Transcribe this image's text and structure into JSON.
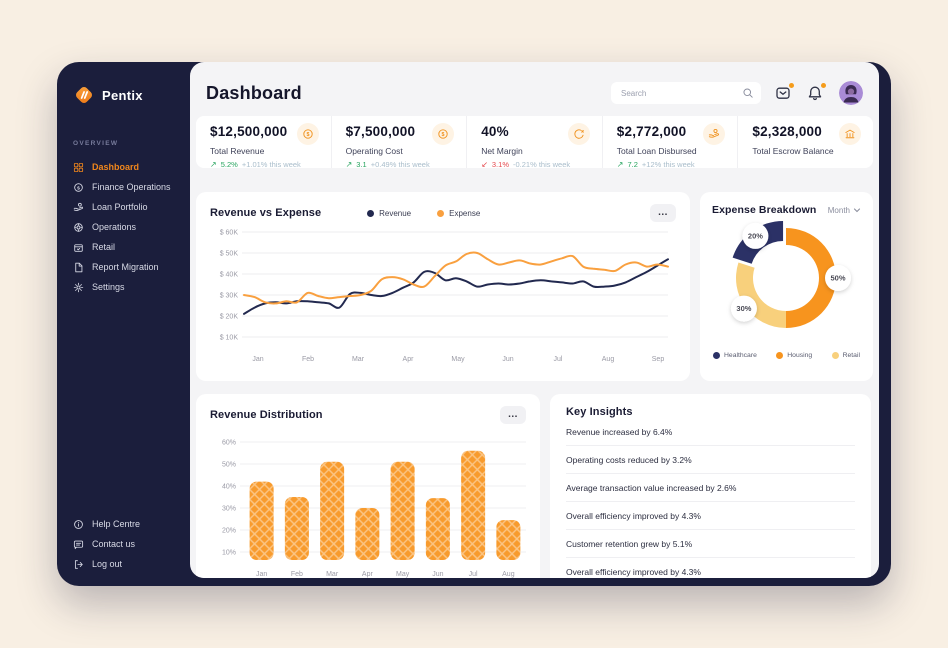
{
  "app": {
    "brand": "Pentix",
    "page_title": "Dashboard"
  },
  "header": {
    "search_placeholder": "Search",
    "icons": [
      "message-icon",
      "bell-icon",
      "user-avatar"
    ]
  },
  "sidebar": {
    "section_label": "OVERVIEW",
    "items": [
      {
        "id": "dashboard",
        "label": "Dashboard",
        "icon": "dashboard-grid-icon",
        "active": true
      },
      {
        "id": "finance-operations",
        "label": "Finance Operations",
        "icon": "dollar-circle-icon",
        "active": false
      },
      {
        "id": "loan-portfolio",
        "label": "Loan Portfolio",
        "icon": "hand-coin-icon",
        "active": false
      },
      {
        "id": "operations",
        "label": "Operations",
        "icon": "operations-icon",
        "active": false
      },
      {
        "id": "retail",
        "label": "Retail",
        "icon": "retail-box-icon",
        "active": false
      },
      {
        "id": "report-migration",
        "label": "Report Migration",
        "icon": "report-doc-icon",
        "active": false
      },
      {
        "id": "settings",
        "label": "Settings",
        "icon": "settings-gear-icon",
        "active": false
      }
    ],
    "footer_items": [
      {
        "id": "help-centre",
        "label": "Help Centre",
        "icon": "help-circle-icon"
      },
      {
        "id": "contact-us",
        "label": "Contact us",
        "icon": "contact-chat-icon"
      },
      {
        "id": "log-out",
        "label": "Log out",
        "icon": "logout-icon"
      }
    ]
  },
  "kpis": [
    {
      "id": "total-revenue",
      "value": "$12,500,000",
      "label": "Total Revenue",
      "icon": "coin-dollar-icon",
      "trend": {
        "dir": "up",
        "arrow": "↗",
        "pct": "5.2%",
        "delta": "+1.01% this week"
      }
    },
    {
      "id": "operating-cost",
      "value": "$7,500,000",
      "label": "Operating Cost",
      "icon": "coin-dollar-icon",
      "trend": {
        "dir": "up",
        "arrow": "↗",
        "pct": "3.1",
        "delta": "+0.49% this week"
      }
    },
    {
      "id": "net-margin",
      "value": "40%",
      "label": "Net Margin",
      "icon": "percent-gauge-icon",
      "trend": {
        "dir": "down",
        "arrow": "↙",
        "pct": "3.1%",
        "delta": "-0.21% this week"
      }
    },
    {
      "id": "total-loan-disbursed",
      "value": "$2,772,000",
      "label": "Total Loan Disbursed",
      "icon": "hand-coin-icon",
      "trend": {
        "dir": "up",
        "arrow": "↗",
        "pct": "7.2",
        "delta": "+12% this week"
      }
    },
    {
      "id": "total-escrow-balance",
      "value": "$2,328,000",
      "label": "Total Escrow Balance",
      "icon": "bank-icon",
      "trend": null
    }
  ],
  "chart_data": [
    {
      "type": "line",
      "title": "Revenue vs Expense",
      "legend_position": "top",
      "x_labels": [
        "Jan",
        "Feb",
        "Mar",
        "Apr",
        "May",
        "Jun",
        "Jul",
        "Aug",
        "Sep"
      ],
      "y_ticks": [
        "$ 60K",
        "$ 50K",
        "$ 40K",
        "$ 30K",
        "$ 20K",
        "$ 10K"
      ],
      "ylim_k": [
        10,
        60
      ],
      "grid": "horizontal",
      "series": [
        {
          "name": "Revenue",
          "color": "#22294F",
          "values_k": [
            21,
            24,
            26,
            26.5,
            26,
            27,
            27,
            26.5,
            26,
            24,
            30.5,
            31,
            30,
            29.5,
            31,
            33.5,
            36,
            41,
            40.5,
            37,
            38,
            36.5,
            34,
            35,
            35.5,
            35,
            35.5,
            36.5,
            37,
            36.5,
            36,
            35.5,
            36.5,
            34,
            34,
            34.5,
            36,
            38.5,
            41,
            44,
            47
          ]
        },
        {
          "name": "Expense",
          "color": "#F9A03F",
          "values_k": [
            30,
            29,
            26.5,
            26,
            27,
            26.5,
            31,
            29.5,
            28.5,
            29,
            29.5,
            30,
            32,
            37.5,
            38.5,
            37.5,
            35,
            34,
            39,
            44,
            46,
            49.5,
            50,
            47,
            44.5,
            45.5,
            46.5,
            45,
            44.5,
            46,
            47.5,
            48.5,
            43.5,
            42.5,
            42,
            41.5,
            44.5,
            45.5,
            43.5,
            44.5,
            43.5
          ]
        }
      ],
      "more_button": "..."
    },
    {
      "type": "pie",
      "title": "Expense Breakdown",
      "period_selector": "Month",
      "slices": [
        {
          "name": "Housing",
          "value": 50,
          "label": "50%",
          "color": "#F7941E",
          "explode": false
        },
        {
          "name": "Retail",
          "value": 30,
          "label": "30%",
          "color": "#F8D07C",
          "explode": false
        },
        {
          "name": "Healthcare",
          "value": 20,
          "label": "20%",
          "color": "#2B3166",
          "explode": true
        }
      ],
      "legend": [
        "Healthcare",
        "Housing",
        "Retail"
      ],
      "legend_colors": [
        "#2B3166",
        "#F7941E",
        "#F8D07C"
      ]
    },
    {
      "type": "bar",
      "title": "Revenue Distribution",
      "categories": [
        "Jan",
        "Feb",
        "Mar",
        "Apr",
        "May",
        "Jun",
        "Jul",
        "Aug"
      ],
      "values": [
        42,
        35,
        51,
        30,
        51,
        34.5,
        56,
        24.5
      ],
      "y_ticks": [
        "60%",
        "50%",
        "40%",
        "30%",
        "20%",
        "10%"
      ],
      "ylim": [
        10,
        60
      ],
      "bar_color": "#F89B2D",
      "more_button": "..."
    }
  ],
  "insights": {
    "title": "Key Insights",
    "items": [
      "Revenue increased by 6.4%",
      "Operating costs reduced by 3.2%",
      "Average transaction value increased by 2.6%",
      "Overall efficiency improved by 4.3%",
      "Customer retention grew by 5.1%",
      "Overall efficiency improved by 4.3%"
    ]
  }
}
